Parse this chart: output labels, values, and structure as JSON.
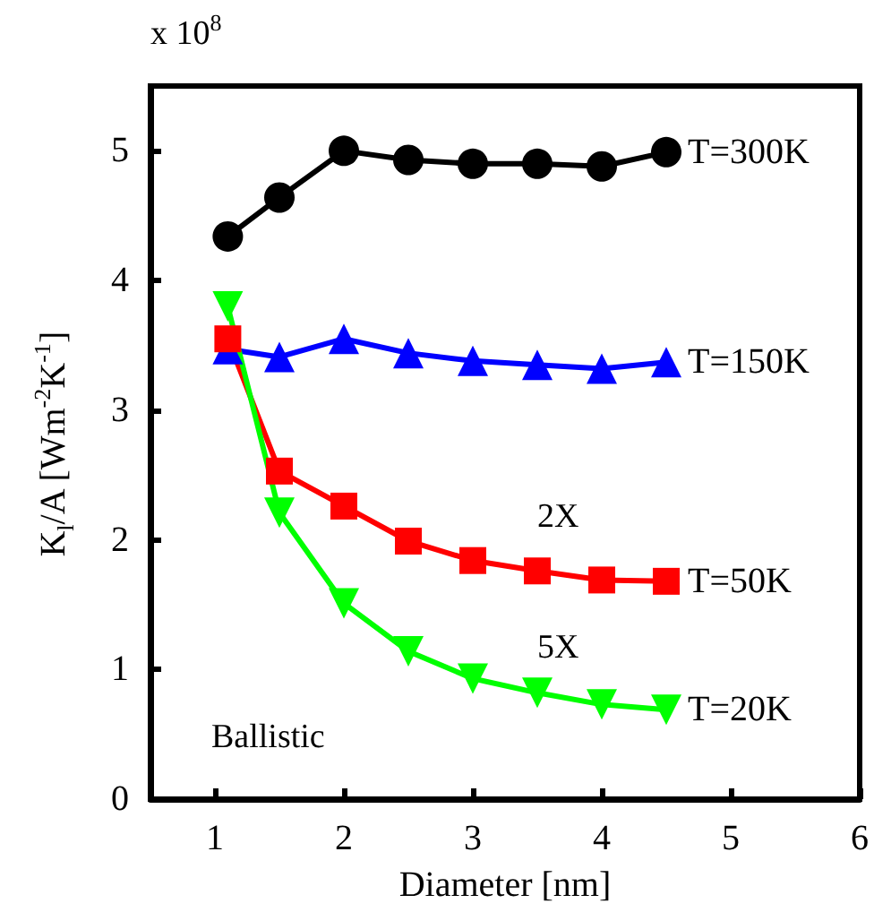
{
  "chart_data": {
    "type": "line",
    "xlabel": "Diameter [nm]",
    "ylabel": "K$_{l}$/A [Wm$^{-2}$K$^{-1}$]",
    "x": [
      1.1,
      1.5,
      2,
      2.5,
      3,
      3.5,
      4,
      4.5
    ],
    "series": [
      {
        "name": "T=300K",
        "color": "#000000",
        "marker": "circle",
        "values": [
          4.34,
          4.64,
          5.0,
          4.93,
          4.9,
          4.9,
          4.88,
          4.99
        ]
      },
      {
        "name": "T=150K",
        "color": "#0000ff",
        "marker": "triangle",
        "values": [
          3.47,
          3.41,
          3.55,
          3.44,
          3.38,
          3.35,
          3.32,
          3.37
        ]
      },
      {
        "name": "T=50K",
        "color": "#ff0000",
        "marker": "square",
        "values": [
          3.55,
          2.53,
          2.26,
          1.99,
          1.84,
          1.76,
          1.69,
          1.68
        ]
      },
      {
        "name": "T=20K",
        "color": "#00ff00",
        "marker": "triangle-down",
        "values": [
          3.8,
          2.21,
          1.51,
          1.14,
          0.93,
          0.82,
          0.73,
          0.69
        ]
      }
    ],
    "annotations": [
      "x 10$^{8}$",
      "2X",
      "5X",
      "Ballistic"
    ],
    "xlim": [
      0.5,
      6
    ],
    "xticks": [
      1,
      2,
      3,
      4,
      5,
      6
    ],
    "ylim": [
      0,
      5.5
    ],
    "yticks": [
      0,
      1,
      2,
      3,
      4,
      5
    ],
    "grid": false,
    "legend": false
  }
}
